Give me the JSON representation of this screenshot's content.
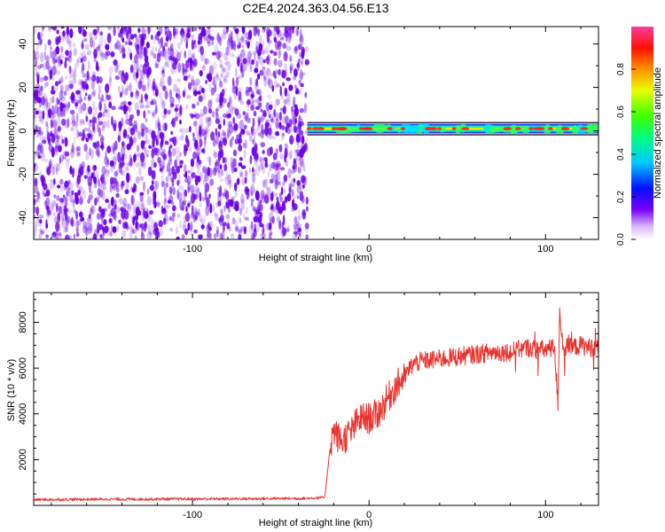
{
  "title": "C2E4.2024.363.04.56.E13",
  "colors": {
    "snr_line": "#e8342f",
    "spectro_noise": "#6a00e8",
    "axis": "#000000"
  },
  "chart_data": [
    {
      "type": "heatmap",
      "xlabel": "Height of straight line (km)",
      "ylabel": "Frequency (Hz)",
      "xlim": [
        -190,
        130
      ],
      "ylim": [
        -50,
        48
      ],
      "x_ticks": [
        -100,
        0,
        100
      ],
      "y_ticks": [
        -40,
        -20,
        0,
        20,
        40
      ],
      "noise_region_x": [
        -190,
        -35
      ],
      "signal_band_x": [
        -35,
        130
      ],
      "signal_band_center_hz": 1,
      "colorbar": {
        "label": "Normalized spectral amplitude",
        "range": [
          0,
          1
        ],
        "ticks": [
          "0.0",
          "0.2",
          "0.4",
          "0.6",
          "0.8"
        ]
      }
    },
    {
      "type": "line",
      "xlabel": "Height of straight line (km)",
      "ylabel": "SNR (10 * v/v)",
      "xlim": [
        -190,
        130
      ],
      "ylim": [
        0,
        9300
      ],
      "x_ticks": [
        -100,
        0,
        100
      ],
      "y_ticks": [
        2000,
        4000,
        6000,
        8000
      ],
      "series": [
        {
          "x": [
            -190,
            -170,
            -150,
            -130,
            -110,
            -90,
            -70,
            -50,
            -35,
            -25,
            -22,
            -20,
            -18,
            -15,
            -12,
            -10,
            -8,
            -5,
            0,
            5,
            10,
            15,
            20,
            25,
            30,
            40,
            50,
            60,
            70,
            80,
            85,
            90,
            95,
            100,
            105,
            107,
            108,
            110,
            115,
            120,
            125,
            130
          ],
          "y": [
            250,
            260,
            270,
            270,
            280,
            280,
            290,
            300,
            310,
            350,
            2600,
            3300,
            3000,
            2800,
            3100,
            3200,
            3500,
            3800,
            3800,
            4000,
            4600,
            5200,
            5600,
            6200,
            6300,
            6400,
            6500,
            6600,
            6700,
            6700,
            6800,
            6900,
            6800,
            6800,
            6900,
            4500,
            8500,
            6900,
            6900,
            7000,
            6900,
            7000
          ]
        }
      ]
    }
  ]
}
